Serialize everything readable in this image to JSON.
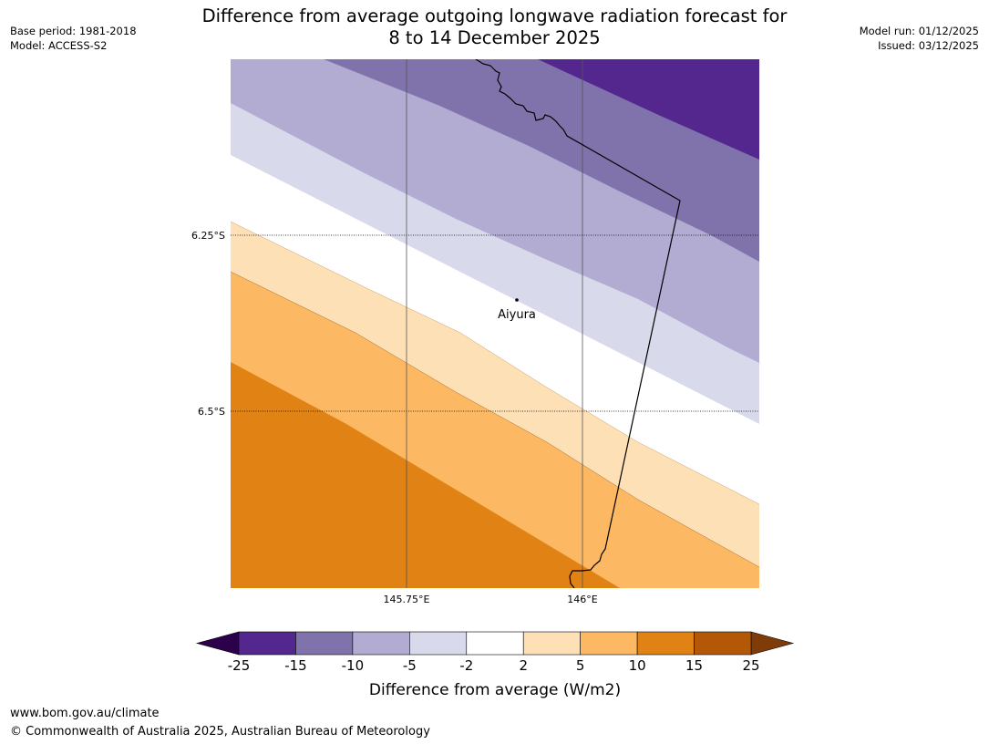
{
  "title_line1": "Difference from average outgoing longwave radiation forecast for",
  "title_line2": "8 to 14 December 2025",
  "meta": {
    "base_period": "Base period: 1981-2018",
    "model": "Model: ACCESS-S2",
    "model_run": "Model run: 01/12/2025",
    "issued": "Issued: 03/12/2025"
  },
  "map": {
    "lat_labels": [
      "6.25°S",
      "6.5°S"
    ],
    "lon_labels": [
      "145.75°E",
      "146°E"
    ],
    "place_label": "Aiyura"
  },
  "colorbar": {
    "label": "Difference from average (W/m2)",
    "ticks": [
      "-25",
      "-15",
      "-10",
      "-5",
      "-2",
      "2",
      "5",
      "10",
      "15",
      "25"
    ],
    "colors": [
      "#54278f",
      "#8073ac",
      "#b2abd2",
      "#d8daeb",
      "#ffffff",
      "#fee0b6",
      "#fdb863",
      "#e08214",
      "#b35806"
    ],
    "under_color": "#2d004b",
    "over_color": "#7f3b08"
  },
  "footer": {
    "url": "www.bom.gov.au/climate",
    "copyright": "© Commonwealth of Australia 2025, Australian Bureau of Meteorology"
  }
}
